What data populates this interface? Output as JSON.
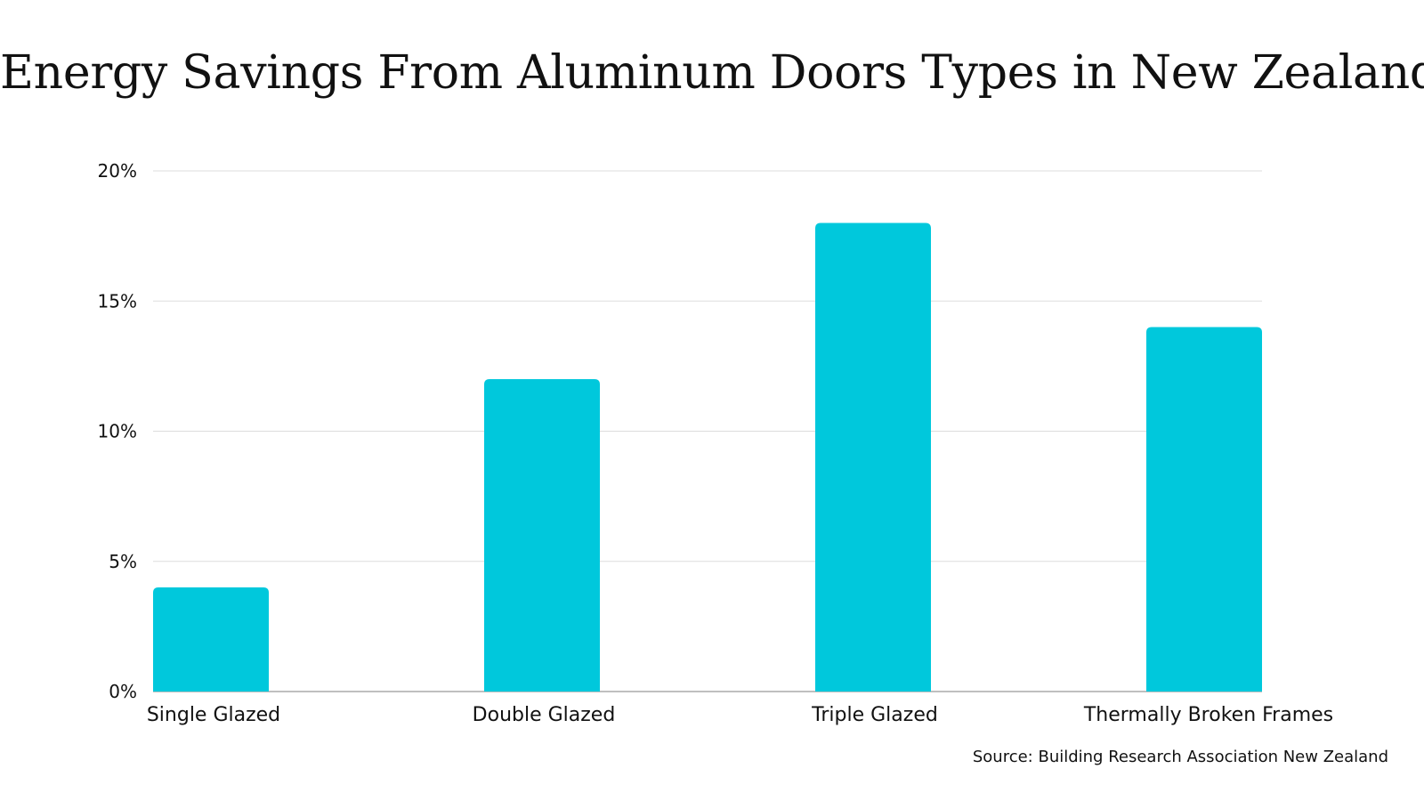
{
  "chart_data": {
    "type": "bar",
    "title": "Energy Savings From Aluminum Doors Types in New Zealand",
    "categories": [
      "Single Glazed",
      "Double Glazed",
      "Triple Glazed",
      "Thermally Broken Frames"
    ],
    "values": [
      4,
      12,
      18,
      14
    ],
    "ylim": [
      0,
      20
    ],
    "yticks": [
      0,
      5,
      10,
      15,
      20
    ],
    "ytick_labels": [
      "0%",
      "5%",
      "10%",
      "15%",
      "20%"
    ],
    "xlabel": "",
    "ylabel": "",
    "grid": true,
    "bar_color": "#00C8DC",
    "grid_color": "#DDDDDD",
    "axis_color": "#AAAAAA",
    "text_color": "#111111"
  },
  "source": "Source: Building Research Association New Zealand"
}
